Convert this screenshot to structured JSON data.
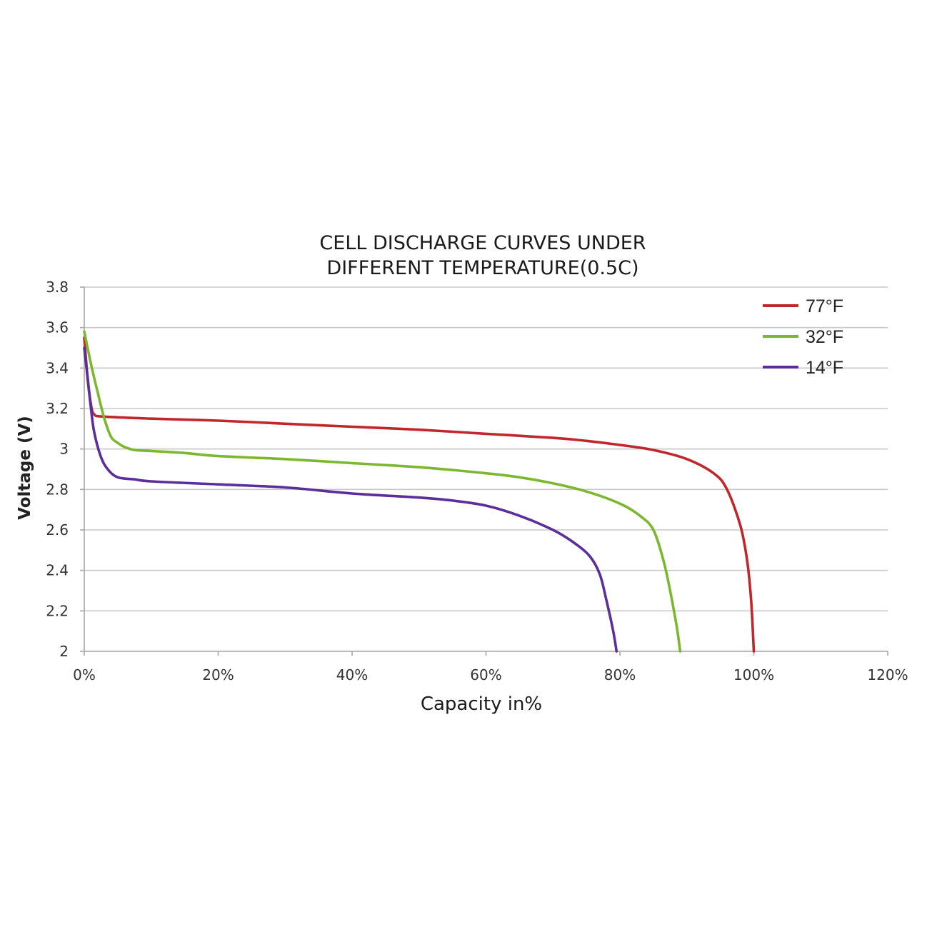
{
  "chart_data": {
    "type": "line",
    "title_lines": [
      "CELL DISCHARGE CURVES UNDER",
      "DIFFERENT TEMPERATURE(0.5C)"
    ],
    "xlabel": "Capacity in%",
    "ylabel": "Voltage (V)",
    "xlim": [
      0,
      120
    ],
    "ylim": [
      2,
      3.8
    ],
    "x_ticks": [
      0,
      20,
      40,
      60,
      80,
      100,
      120
    ],
    "x_tick_labels": [
      "0%",
      "20%",
      "40%",
      "60%",
      "80%",
      "100%",
      "120%"
    ],
    "y_ticks": [
      2,
      2.2,
      2.4,
      2.6,
      2.8,
      3,
      3.2,
      3.4,
      3.6,
      3.8
    ],
    "y_tick_labels": [
      "2",
      "2.2",
      "2.4",
      "2.6",
      "2.8",
      "3",
      "3.2",
      "3.4",
      "3.6",
      "3.8"
    ],
    "grid": "horizontal",
    "legend_position": "top-right",
    "series": [
      {
        "name": "77°F",
        "color": "#c0272d",
        "points": [
          [
            0,
            3.55
          ],
          [
            0.5,
            3.35
          ],
          [
            1,
            3.22
          ],
          [
            1.5,
            3.17
          ],
          [
            3,
            3.16
          ],
          [
            10,
            3.15
          ],
          [
            20,
            3.14
          ],
          [
            30,
            3.125
          ],
          [
            40,
            3.11
          ],
          [
            50,
            3.095
          ],
          [
            60,
            3.075
          ],
          [
            70,
            3.055
          ],
          [
            75,
            3.04
          ],
          [
            80,
            3.02
          ],
          [
            85,
            2.995
          ],
          [
            90,
            2.95
          ],
          [
            94,
            2.88
          ],
          [
            96,
            2.8
          ],
          [
            98,
            2.62
          ],
          [
            99,
            2.45
          ],
          [
            99.6,
            2.25
          ],
          [
            100,
            2.0
          ]
        ]
      },
      {
        "name": "32°F",
        "color": "#7cb82f",
        "points": [
          [
            0,
            3.58
          ],
          [
            1,
            3.42
          ],
          [
            2,
            3.28
          ],
          [
            3,
            3.15
          ],
          [
            4,
            3.06
          ],
          [
            5,
            3.03
          ],
          [
            6,
            3.01
          ],
          [
            7.5,
            2.995
          ],
          [
            10,
            2.99
          ],
          [
            15,
            2.98
          ],
          [
            20,
            2.965
          ],
          [
            30,
            2.95
          ],
          [
            40,
            2.93
          ],
          [
            50,
            2.91
          ],
          [
            60,
            2.88
          ],
          [
            65,
            2.86
          ],
          [
            70,
            2.83
          ],
          [
            75,
            2.79
          ],
          [
            80,
            2.73
          ],
          [
            83,
            2.67
          ],
          [
            85,
            2.6
          ],
          [
            86.5,
            2.45
          ],
          [
            87.5,
            2.3
          ],
          [
            88.5,
            2.12
          ],
          [
            89,
            2.0
          ]
        ]
      },
      {
        "name": "14°F",
        "color": "#5b2e9a",
        "points": [
          [
            0,
            3.5
          ],
          [
            0.5,
            3.35
          ],
          [
            1,
            3.2
          ],
          [
            1.5,
            3.08
          ],
          [
            2.5,
            2.96
          ],
          [
            3.5,
            2.9
          ],
          [
            5,
            2.86
          ],
          [
            7.5,
            2.85
          ],
          [
            10,
            2.84
          ],
          [
            20,
            2.825
          ],
          [
            30,
            2.81
          ],
          [
            40,
            2.78
          ],
          [
            50,
            2.76
          ],
          [
            55,
            2.745
          ],
          [
            60,
            2.72
          ],
          [
            65,
            2.67
          ],
          [
            70,
            2.6
          ],
          [
            73,
            2.54
          ],
          [
            75.5,
            2.47
          ],
          [
            77,
            2.38
          ],
          [
            78,
            2.25
          ],
          [
            79,
            2.1
          ],
          [
            79.5,
            2.0
          ]
        ]
      }
    ]
  }
}
